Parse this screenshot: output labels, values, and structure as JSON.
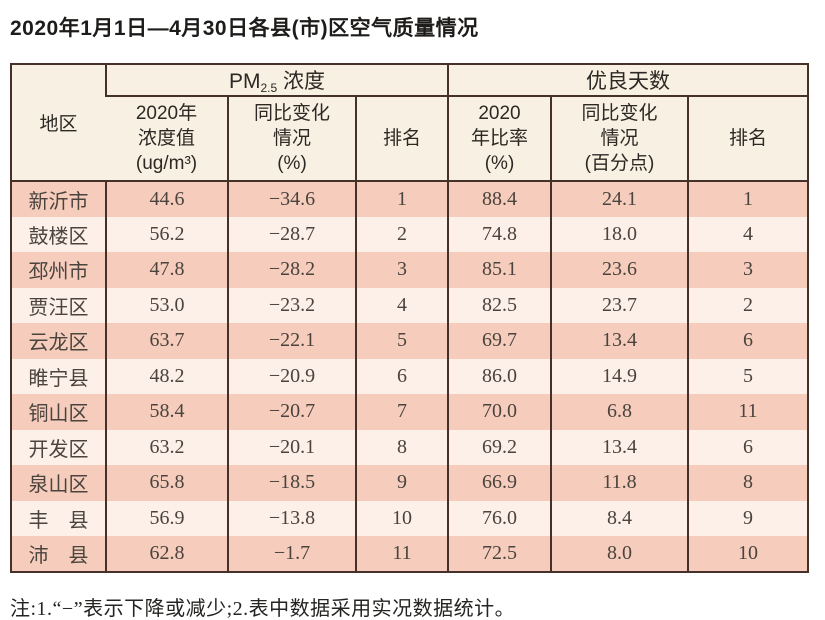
{
  "page": {
    "title": "2020年1月1日—4月30日各县(市)区空气质量情况",
    "footnote": "注:1.“−”表示下降或减少;2.表中数据采用实况数据统计。"
  },
  "table": {
    "header": {
      "region": "地区",
      "pm_group": {
        "base": "PM",
        "subscript": "2.5",
        "suffix": " 浓度"
      },
      "good_group": "优良天数",
      "pm_value_lines": [
        "2020年",
        "浓度值",
        "(ug/m³)"
      ],
      "pm_change_lines": [
        "同比变化",
        "情况",
        "(%)"
      ],
      "pm_rank": "排名",
      "good_ratio_lines": [
        "2020",
        "年比率",
        "(%)"
      ],
      "good_change_lines": [
        "同比变化",
        "情况",
        "(百分点)"
      ],
      "good_rank": "排名"
    }
  },
  "chart_data": {
    "type": "table",
    "title": "2020年1月1日—4月30日各县(市)区空气质量情况",
    "column_groups": [
      "PM2.5浓度",
      "优良天数"
    ],
    "columns": [
      "地区",
      "2020年浓度值(ug/m³)",
      "同比变化情况(%)",
      "排名",
      "2020年比率(%)",
      "同比变化情况(百分点)",
      "排名"
    ],
    "rows": [
      {
        "region": "新沂市",
        "pm_value": "44.6",
        "pm_change": "−34.6",
        "pm_rank": "1",
        "good_ratio": "88.4",
        "good_change": "24.1",
        "good_rank": "1"
      },
      {
        "region": "鼓楼区",
        "pm_value": "56.2",
        "pm_change": "−28.7",
        "pm_rank": "2",
        "good_ratio": "74.8",
        "good_change": "18.0",
        "good_rank": "4"
      },
      {
        "region": "邳州市",
        "pm_value": "47.8",
        "pm_change": "−28.2",
        "pm_rank": "3",
        "good_ratio": "85.1",
        "good_change": "23.6",
        "good_rank": "3"
      },
      {
        "region": "贾汪区",
        "pm_value": "53.0",
        "pm_change": "−23.2",
        "pm_rank": "4",
        "good_ratio": "82.5",
        "good_change": "23.7",
        "good_rank": "2"
      },
      {
        "region": "云龙区",
        "pm_value": "63.7",
        "pm_change": "−22.1",
        "pm_rank": "5",
        "good_ratio": "69.7",
        "good_change": "13.4",
        "good_rank": "6"
      },
      {
        "region": "睢宁县",
        "pm_value": "48.2",
        "pm_change": "−20.9",
        "pm_rank": "6",
        "good_ratio": "86.0",
        "good_change": "14.9",
        "good_rank": "5"
      },
      {
        "region": "铜山区",
        "pm_value": "58.4",
        "pm_change": "−20.7",
        "pm_rank": "7",
        "good_ratio": "70.0",
        "good_change": "6.8",
        "good_rank": "11"
      },
      {
        "region": "开发区",
        "pm_value": "63.2",
        "pm_change": "−20.1",
        "pm_rank": "8",
        "good_ratio": "69.2",
        "good_change": "13.4",
        "good_rank": "6"
      },
      {
        "region": "泉山区",
        "pm_value": "65.8",
        "pm_change": "−18.5",
        "pm_rank": "9",
        "good_ratio": "66.9",
        "good_change": "11.8",
        "good_rank": "8"
      },
      {
        "region": "丰　县",
        "pm_value": "56.9",
        "pm_change": "−13.8",
        "pm_rank": "10",
        "good_ratio": "76.0",
        "good_change": "8.4",
        "good_rank": "9"
      },
      {
        "region": "沛　县",
        "pm_value": "62.8",
        "pm_change": "−1.7",
        "pm_rank": "11",
        "good_ratio": "72.5",
        "good_change": "8.0",
        "good_rank": "10"
      }
    ]
  },
  "colors": {
    "row_dark": "#f6cdbc",
    "row_light": "#fdf0e9",
    "header_bg": "#f8f0e2",
    "border": "#46302a"
  }
}
